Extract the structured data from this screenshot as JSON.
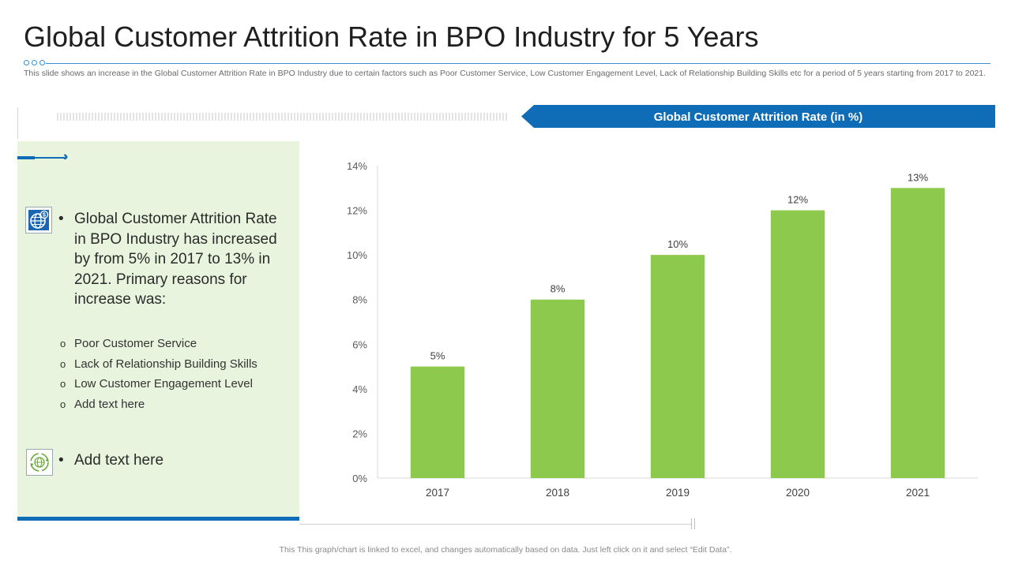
{
  "page": {
    "title": "Global Customer Attrition Rate in BPO Industry for 5 Years",
    "subtitle": "This slide shows an increase in the Global Customer Attrition Rate in BPO Industry due to certain factors such as Poor Customer Service, Low Customer Engagement Level, Lack of Relationship Building Skills etc for a period of 5 years starting from 2017 to 2021.",
    "footer": "This This graph/chart is linked to excel,  and changes automatically based on data. Just left click on it and select “Edit Data”."
  },
  "panel": {
    "bullet_char": "•",
    "sub_bullet_char": "o",
    "main_text": "Global Customer Attrition Rate in BPO Industry has increased by from 5% in 2017 to 13% in 2021. Primary reasons for increase was:",
    "sub_items": [
      "Poor Customer Service",
      "Lack of Relationship Building Skills",
      "Low Customer Engagement Level",
      "Add text here"
    ],
    "add_text": "Add  text here",
    "chevrons": "››››",
    "icons": [
      "globe-dollar-icon",
      "recycle-globe-icon"
    ]
  },
  "colors": {
    "accent_blue": "#0f6db7",
    "panel_green": "#e8f4dd",
    "bar_green": "#8cc94c"
  },
  "chart_data": {
    "type": "bar",
    "title": "Global Customer Attrition Rate (in %)",
    "categories": [
      "2017",
      "2018",
      "2019",
      "2020",
      "2021"
    ],
    "values": [
      5,
      8,
      10,
      12,
      13
    ],
    "data_labels": [
      "5%",
      "8%",
      "10%",
      "12%",
      "13%"
    ],
    "ylim": [
      0,
      14
    ],
    "yticks": [
      0,
      2,
      4,
      6,
      8,
      10,
      12,
      14
    ],
    "ytick_labels": [
      "0%",
      "2%",
      "4%",
      "6%",
      "8%",
      "10%",
      "12%",
      "14%"
    ],
    "xlabel": "",
    "ylabel": "",
    "grid": false,
    "legend": "none"
  }
}
